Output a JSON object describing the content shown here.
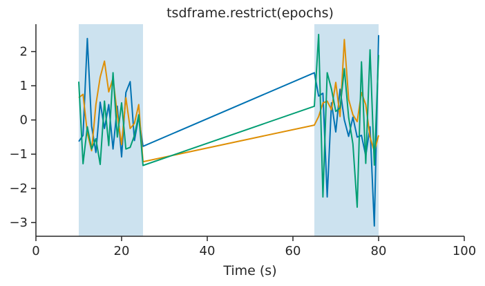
{
  "chart_data": {
    "type": "line",
    "title": "tsdframe.restrict(epochs)",
    "xlabel": "Time (s)",
    "ylabel": "",
    "xlim": [
      0,
      100
    ],
    "ylim": [
      -3.4,
      2.8
    ],
    "xticks": [
      0,
      20,
      40,
      60,
      80,
      100
    ],
    "yticks": [
      -3,
      -2,
      -1,
      0,
      1,
      2
    ],
    "grid": false,
    "spans": [
      {
        "x0": 10,
        "x1": 25,
        "color": "#cce2ef"
      },
      {
        "x0": 65,
        "x1": 80,
        "color": "#cce2ef"
      }
    ],
    "x": [
      10,
      11,
      12,
      13,
      14,
      15,
      16,
      17,
      18,
      19,
      20,
      21,
      22,
      23,
      24,
      25,
      65,
      66,
      67,
      68,
      69,
      70,
      71,
      72,
      73,
      74,
      75,
      76,
      77,
      78,
      79,
      80
    ],
    "series": [
      {
        "color": "#0072b2",
        "values": [
          -0.63,
          -0.45,
          2.38,
          -0.18,
          -0.95,
          0.52,
          -0.25,
          0.45,
          -0.85,
          0.4,
          -1.08,
          0.8,
          1.12,
          -0.6,
          0.1,
          -0.77,
          1.38,
          0.7,
          0.78,
          -2.25,
          0.5,
          -0.35,
          0.9,
          0.0,
          -0.48,
          0.08,
          -0.5,
          -0.45,
          -1.05,
          -0.2,
          -3.1,
          2.48
        ]
      },
      {
        "color": "#de8f05",
        "values": [
          0.65,
          0.75,
          -0.38,
          -0.9,
          0.45,
          1.25,
          1.72,
          0.82,
          1.22,
          0.15,
          -0.72,
          0.65,
          -0.25,
          -0.1,
          0.45,
          -1.22,
          -0.15,
          0.1,
          0.5,
          0.55,
          0.3,
          1.1,
          0.1,
          2.35,
          0.6,
          0.15,
          -0.05,
          0.8,
          0.45,
          -0.5,
          -0.92,
          -0.45
        ]
      },
      {
        "color": "#029e73",
        "values": [
          1.12,
          -1.28,
          -0.2,
          -0.85,
          -0.55,
          -1.3,
          0.55,
          -0.75,
          1.38,
          -0.5,
          0.5,
          -0.85,
          -0.8,
          -0.45,
          0.15,
          -1.33,
          0.4,
          2.5,
          -2.25,
          1.38,
          0.9,
          0.25,
          0.35,
          1.5,
          0.08,
          -0.7,
          -2.55,
          1.7,
          -1.27,
          2.05,
          -1.32,
          1.9
        ]
      }
    ]
  }
}
